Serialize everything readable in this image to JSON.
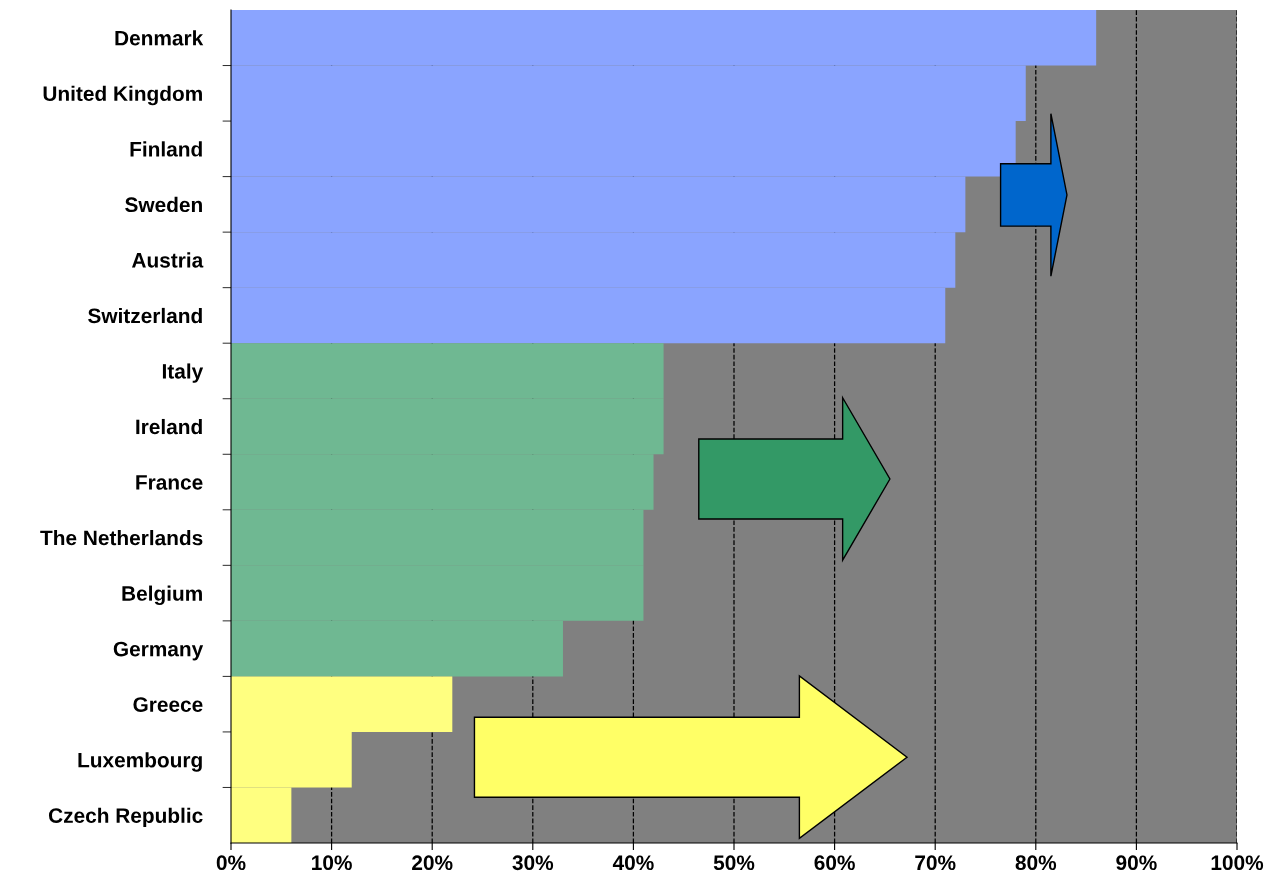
{
  "chart_data": {
    "type": "bar",
    "orientation": "horizontal",
    "categories": [
      "Denmark",
      "United Kingdom",
      "Finland",
      "Sweden",
      "Austria",
      "Switzerland",
      "Italy",
      "Ireland",
      "France",
      "The Netherlands",
      "Belgium",
      "Germany",
      "Greece",
      "Luxembourg",
      "Czech Republic"
    ],
    "values": [
      86,
      79,
      78,
      73,
      72,
      71,
      43,
      43,
      42,
      41,
      41,
      33,
      22,
      12,
      6
    ],
    "colors": [
      "#8aa4ff",
      "#8aa4ff",
      "#8aa4ff",
      "#8aa4ff",
      "#8aa4ff",
      "#8aa4ff",
      "#6fb892",
      "#6fb892",
      "#6fb892",
      "#6fb892",
      "#6fb892",
      "#6fb892",
      "#ffff80",
      "#ffff80",
      "#ffff80"
    ],
    "xlim": [
      0,
      100
    ],
    "xticks": [
      {
        "value": 0,
        "label": "0%"
      },
      {
        "value": 10,
        "label": "10%"
      },
      {
        "value": 20,
        "label": "20%"
      },
      {
        "value": 30,
        "label": "30%"
      },
      {
        "value": 40,
        "label": "40%"
      },
      {
        "value": 50,
        "label": "50%"
      },
      {
        "value": 60,
        "label": "60%"
      },
      {
        "value": 70,
        "label": "70%"
      },
      {
        "value": 80,
        "label": "80%"
      },
      {
        "value": 90,
        "label": "90%"
      },
      {
        "value": 100,
        "label": "100%"
      }
    ],
    "grid": "x",
    "line_style": "dashed",
    "legend": false
  }
}
